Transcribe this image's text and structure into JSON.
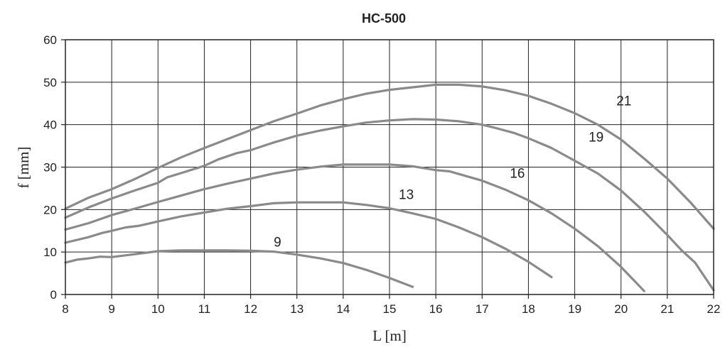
{
  "chart_data": {
    "type": "line",
    "title": "HC-500",
    "xlabel": "L [m]",
    "ylabel": "f [mm]",
    "xlim": [
      8,
      22
    ],
    "ylim": [
      0,
      60
    ],
    "xticks": [
      8,
      9,
      10,
      11,
      12,
      13,
      14,
      15,
      16,
      17,
      18,
      19,
      20,
      21,
      22
    ],
    "yticks": [
      0,
      10,
      20,
      30,
      40,
      50,
      60
    ],
    "grid": true,
    "line_color": "#8a8a8a",
    "series": [
      {
        "name": "9",
        "x": [
          8,
          8.25,
          8.5,
          8.75,
          9,
          9.5,
          10,
          10.5,
          11,
          11.5,
          12,
          12.5,
          13,
          13.5,
          14,
          14.5,
          15,
          15.5
        ],
        "y": [
          7.5,
          8.2,
          8.5,
          8.9,
          8.8,
          9.5,
          10.2,
          10.4,
          10.4,
          10.4,
          10.3,
          10.1,
          9.4,
          8.5,
          7.4,
          5.8,
          3.9,
          1.8
        ]
      },
      {
        "name": "13",
        "x": [
          8,
          8.5,
          8.8,
          9,
          9.3,
          9.6,
          10,
          10.5,
          11,
          11.5,
          12,
          12.5,
          13,
          13.5,
          14,
          14.5,
          15,
          15.5,
          16,
          16.5,
          17,
          17.5,
          18,
          18.5
        ],
        "y": [
          12.2,
          13.5,
          14.5,
          15,
          15.8,
          16.2,
          17.2,
          18.4,
          19.3,
          20.2,
          20.8,
          21.5,
          21.7,
          21.7,
          21.7,
          21.1,
          20.3,
          19.1,
          17.8,
          15.8,
          13.5,
          10.8,
          7.7,
          4.1
        ]
      },
      {
        "name": "16",
        "x": [
          8,
          8.5,
          9,
          9.5,
          10,
          10.5,
          11,
          11.5,
          12,
          12.5,
          13,
          13.5,
          14,
          14.5,
          15,
          15.5,
          16,
          16.3,
          17,
          17.5,
          18,
          18.5,
          19,
          19.5,
          20,
          20.5
        ],
        "y": [
          15.3,
          16.8,
          18.7,
          20.2,
          21.8,
          23.3,
          24.8,
          26.1,
          27.3,
          28.5,
          29.4,
          30.1,
          30.6,
          30.6,
          30.6,
          30.2,
          29.3,
          29,
          26.8,
          24.7,
          22.2,
          19.1,
          15.5,
          11.4,
          6.5,
          0.8
        ]
      },
      {
        "name": "19",
        "x": [
          8,
          8.5,
          9,
          9.5,
          10,
          10.2,
          10.5,
          11,
          11.3,
          11.7,
          12,
          12.5,
          13,
          13.5,
          14,
          14.5,
          15,
          15.5,
          16,
          16.5,
          17,
          17.3,
          17.7,
          18,
          18.5,
          19,
          19.5,
          20,
          20.5,
          21,
          21.3,
          21.6,
          22
        ],
        "y": [
          18.1,
          20.5,
          22.6,
          24.5,
          26.3,
          27.6,
          28.6,
          30.3,
          31.8,
          33.3,
          34,
          35.8,
          37.4,
          38.6,
          39.6,
          40.5,
          41,
          41.3,
          41.2,
          40.8,
          40,
          39.2,
          38,
          36.8,
          34.5,
          31.5,
          28.5,
          24.5,
          19.5,
          14,
          10.5,
          7.5,
          1
        ]
      },
      {
        "name": "21",
        "x": [
          8,
          8.5,
          9,
          9.5,
          10,
          10.5,
          11,
          11.5,
          12,
          12.5,
          13,
          13.5,
          14,
          14.5,
          15,
          15.5,
          16,
          16.5,
          17,
          17.5,
          18,
          18.5,
          19,
          19.5,
          20,
          20.5,
          21,
          21.5,
          22
        ],
        "y": [
          20.2,
          22.8,
          24.8,
          27.2,
          29.8,
          32.3,
          34.5,
          36.6,
          38.7,
          40.8,
          42.6,
          44.5,
          46,
          47.3,
          48.2,
          48.8,
          49.4,
          49.4,
          49,
          48.1,
          46.8,
          44.9,
          42.7,
          40,
          36.5,
          32,
          27.3,
          21.7,
          15.5
        ]
      }
    ],
    "series_labels": [
      {
        "text": "9",
        "x": 12.5,
        "y": 11.3
      },
      {
        "text": "13",
        "x": 15.2,
        "y": 22.5
      },
      {
        "text": "16",
        "x": 17.6,
        "y": 27.5
      },
      {
        "text": "19",
        "x": 19.3,
        "y": 36
      },
      {
        "text": "21",
        "x": 19.9,
        "y": 44.5
      }
    ]
  }
}
